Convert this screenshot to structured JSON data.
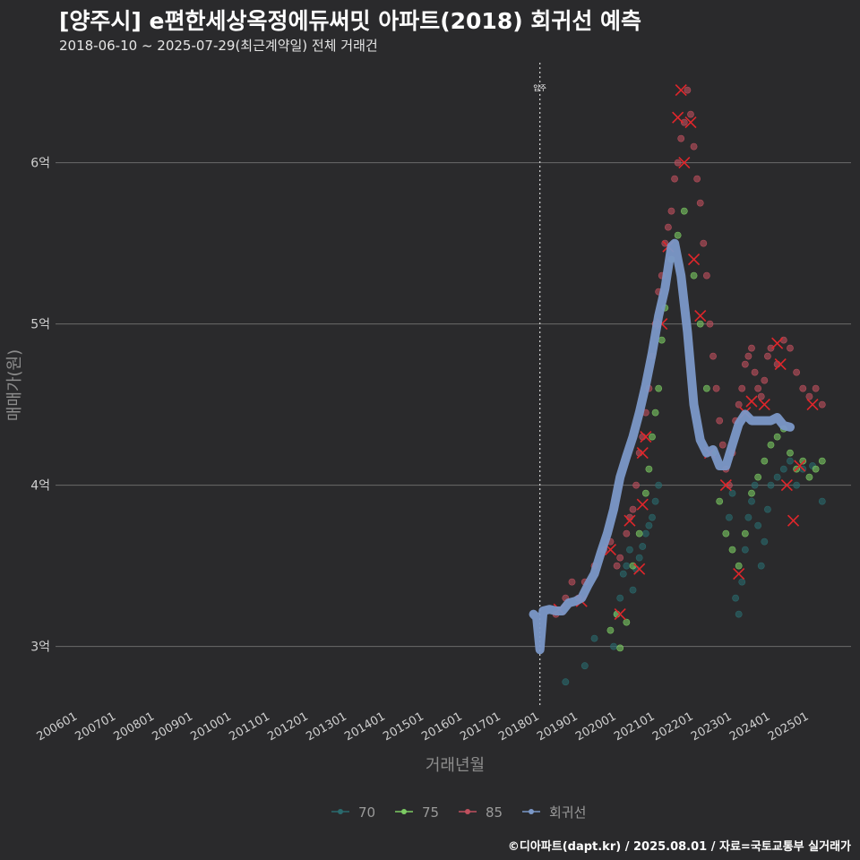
{
  "header": {
    "title": "[양주시] e편한세상옥정에듀써밋 아파트(2018) 회귀선 예측",
    "subtitle": "2018-06-10 ~ 2025-07-29(최근계약일) 전체 거래건"
  },
  "footer": {
    "credit": "©디아파트(dapt.kr) / 2025.08.01 / 자료=국토교통부 실거래가"
  },
  "colors": {
    "background": "#2a2a2c",
    "s70": "#2a6b6e",
    "s75": "#7ccb63",
    "s85": "#c0505e",
    "regression": "#7b98c8",
    "grid": "#6a6a6a",
    "marker": "#e0262b"
  },
  "chart_data": {
    "type": "scatter",
    "xlabel": "거래년월",
    "ylabel": "매매가(원)",
    "ylim": [
      2.62,
      6.62
    ],
    "xlim": [
      "2005-06",
      "2026-02"
    ],
    "y_ticks": [
      3,
      4,
      5,
      6
    ],
    "y_tick_labels": [
      "3억",
      "4억",
      "5억",
      "6억"
    ],
    "x_ticks": [
      "2006-01",
      "2007-01",
      "2008-01",
      "2009-01",
      "2010-01",
      "2011-01",
      "2012-01",
      "2013-01",
      "2014-01",
      "2015-01",
      "2016-01",
      "2017-01",
      "2018-01",
      "2019-01",
      "2020-01",
      "2021-01",
      "2022-01",
      "2023-01",
      "2024-01",
      "2025-01"
    ],
    "x_tick_labels": [
      "200601",
      "200701",
      "200801",
      "200901",
      "201001",
      "201101",
      "201201",
      "201301",
      "201401",
      "201501",
      "201601",
      "201701",
      "201801",
      "201901",
      "202001",
      "202101",
      "202201",
      "202301",
      "202401",
      "202501"
    ],
    "vline": {
      "x": "2018-01",
      "label": "입주"
    },
    "legend": {
      "position": "bottom",
      "entries": [
        "70",
        "75",
        "85",
        "회귀선"
      ]
    },
    "series": [
      {
        "name": "70",
        "points": [
          [
            "2018-09",
            2.78
          ],
          [
            "2019-03",
            2.88
          ],
          [
            "2019-06",
            3.05
          ],
          [
            "2019-12",
            3.0
          ],
          [
            "2020-01",
            3.2
          ],
          [
            "2020-02",
            3.3
          ],
          [
            "2020-03",
            3.45
          ],
          [
            "2020-04",
            3.5
          ],
          [
            "2020-05",
            3.6
          ],
          [
            "2020-06",
            3.35
          ],
          [
            "2020-07",
            3.48
          ],
          [
            "2020-08",
            3.55
          ],
          [
            "2020-09",
            3.62
          ],
          [
            "2020-10",
            3.7
          ],
          [
            "2020-11",
            3.75
          ],
          [
            "2020-12",
            3.8
          ],
          [
            "2021-01",
            3.9
          ],
          [
            "2021-02",
            4.0
          ],
          [
            "2022-12",
            3.8
          ],
          [
            "2023-01",
            3.95
          ],
          [
            "2023-02",
            3.3
          ],
          [
            "2023-03",
            3.2
          ],
          [
            "2023-04",
            3.4
          ],
          [
            "2023-05",
            3.6
          ],
          [
            "2023-06",
            3.8
          ],
          [
            "2023-07",
            3.9
          ],
          [
            "2023-08",
            4.0
          ],
          [
            "2023-09",
            3.75
          ],
          [
            "2023-10",
            3.5
          ],
          [
            "2023-11",
            3.65
          ],
          [
            "2023-12",
            3.85
          ],
          [
            "2024-01",
            4.0
          ],
          [
            "2024-03",
            4.05
          ],
          [
            "2024-05",
            4.1
          ],
          [
            "2024-07",
            4.15
          ],
          [
            "2024-09",
            4.0
          ],
          [
            "2024-11",
            4.1
          ],
          [
            "2025-02",
            4.12
          ],
          [
            "2025-05",
            3.9
          ]
        ]
      },
      {
        "name": "75",
        "points": [
          [
            "2019-11",
            3.1
          ],
          [
            "2020-01",
            3.2
          ],
          [
            "2020-02",
            2.99
          ],
          [
            "2020-04",
            3.15
          ],
          [
            "2020-06",
            3.5
          ],
          [
            "2020-08",
            3.7
          ],
          [
            "2020-10",
            3.95
          ],
          [
            "2020-11",
            4.1
          ],
          [
            "2020-12",
            4.3
          ],
          [
            "2021-01",
            4.45
          ],
          [
            "2021-02",
            4.6
          ],
          [
            "2021-03",
            4.9
          ],
          [
            "2021-04",
            5.1
          ],
          [
            "2021-06",
            5.4
          ],
          [
            "2021-08",
            5.55
          ],
          [
            "2021-10",
            5.7
          ],
          [
            "2022-01",
            5.3
          ],
          [
            "2022-03",
            5.0
          ],
          [
            "2022-05",
            4.6
          ],
          [
            "2022-07",
            4.2
          ],
          [
            "2022-09",
            3.9
          ],
          [
            "2022-11",
            3.7
          ],
          [
            "2023-01",
            3.6
          ],
          [
            "2023-03",
            3.5
          ],
          [
            "2023-05",
            3.7
          ],
          [
            "2023-07",
            3.95
          ],
          [
            "2023-09",
            4.05
          ],
          [
            "2023-11",
            4.15
          ],
          [
            "2024-01",
            4.25
          ],
          [
            "2024-03",
            4.3
          ],
          [
            "2024-05",
            4.35
          ],
          [
            "2024-07",
            4.2
          ],
          [
            "2024-09",
            4.1
          ],
          [
            "2024-11",
            4.15
          ],
          [
            "2025-01",
            4.05
          ],
          [
            "2025-03",
            4.1
          ],
          [
            "2025-05",
            4.15
          ]
        ]
      },
      {
        "name": "85",
        "points": [
          [
            "2018-06",
            3.2
          ],
          [
            "2018-09",
            3.3
          ],
          [
            "2018-11",
            3.4
          ],
          [
            "2019-01",
            3.3
          ],
          [
            "2019-03",
            3.4
          ],
          [
            "2019-06",
            3.5
          ],
          [
            "2019-09",
            3.6
          ],
          [
            "2019-11",
            3.65
          ],
          [
            "2020-01",
            3.5
          ],
          [
            "2020-02",
            3.55
          ],
          [
            "2020-04",
            3.7
          ],
          [
            "2020-05",
            3.8
          ],
          [
            "2020-06",
            3.85
          ],
          [
            "2020-07",
            4.0
          ],
          [
            "2020-08",
            4.2
          ],
          [
            "2020-09",
            4.3
          ],
          [
            "2020-10",
            4.45
          ],
          [
            "2020-11",
            4.6
          ],
          [
            "2020-12",
            4.8
          ],
          [
            "2021-01",
            5.0
          ],
          [
            "2021-02",
            5.2
          ],
          [
            "2021-03",
            5.3
          ],
          [
            "2021-04",
            5.5
          ],
          [
            "2021-05",
            5.6
          ],
          [
            "2021-06",
            5.7
          ],
          [
            "2021-07",
            5.9
          ],
          [
            "2021-08",
            6.0
          ],
          [
            "2021-09",
            6.15
          ],
          [
            "2021-10",
            6.25
          ],
          [
            "2021-11",
            6.45
          ],
          [
            "2021-12",
            6.3
          ],
          [
            "2022-01",
            6.1
          ],
          [
            "2022-02",
            5.9
          ],
          [
            "2022-03",
            5.75
          ],
          [
            "2022-04",
            5.5
          ],
          [
            "2022-05",
            5.3
          ],
          [
            "2022-06",
            5.0
          ],
          [
            "2022-07",
            4.8
          ],
          [
            "2022-08",
            4.6
          ],
          [
            "2022-09",
            4.4
          ],
          [
            "2022-10",
            4.25
          ],
          [
            "2022-11",
            4.1
          ],
          [
            "2022-12",
            4.0
          ],
          [
            "2023-01",
            4.2
          ],
          [
            "2023-02",
            4.4
          ],
          [
            "2023-03",
            4.5
          ],
          [
            "2023-04",
            4.6
          ],
          [
            "2023-05",
            4.75
          ],
          [
            "2023-06",
            4.8
          ],
          [
            "2023-07",
            4.85
          ],
          [
            "2023-08",
            4.7
          ],
          [
            "2023-09",
            4.6
          ],
          [
            "2023-10",
            4.55
          ],
          [
            "2023-11",
            4.65
          ],
          [
            "2023-12",
            4.8
          ],
          [
            "2024-01",
            4.85
          ],
          [
            "2024-03",
            4.75
          ],
          [
            "2024-05",
            4.9
          ],
          [
            "2024-07",
            4.85
          ],
          [
            "2024-09",
            4.7
          ],
          [
            "2024-11",
            4.6
          ],
          [
            "2025-01",
            4.55
          ],
          [
            "2025-03",
            4.6
          ],
          [
            "2025-05",
            4.5
          ]
        ]
      }
    ],
    "marked_trades": [
      [
        "2018-07",
        3.23
      ],
      [
        "2019-02",
        3.28
      ],
      [
        "2019-11",
        3.6
      ],
      [
        "2020-02",
        3.2
      ],
      [
        "2020-05",
        3.78
      ],
      [
        "2020-08",
        3.48
      ],
      [
        "2020-09",
        3.88
      ],
      [
        "2020-09",
        4.2
      ],
      [
        "2020-10",
        4.3
      ],
      [
        "2021-03",
        5.0
      ],
      [
        "2021-05",
        5.48
      ],
      [
        "2021-08",
        6.28
      ],
      [
        "2021-09",
        6.45
      ],
      [
        "2021-10",
        6.0
      ],
      [
        "2021-12",
        6.25
      ],
      [
        "2022-01",
        5.4
      ],
      [
        "2022-03",
        5.05
      ],
      [
        "2022-06",
        4.2
      ],
      [
        "2022-11",
        4.0
      ],
      [
        "2023-03",
        3.45
      ],
      [
        "2023-05",
        4.45
      ],
      [
        "2023-07",
        4.52
      ],
      [
        "2023-11",
        4.5
      ],
      [
        "2024-03",
        4.88
      ],
      [
        "2024-04",
        4.75
      ],
      [
        "2024-06",
        4.0
      ],
      [
        "2024-08",
        3.78
      ],
      [
        "2024-10",
        4.12
      ],
      [
        "2025-02",
        4.5
      ]
    ],
    "regression": {
      "name": "회귀선",
      "points": [
        [
          "2017-11",
          3.2
        ],
        [
          "2017-12",
          3.18
        ],
        [
          "2018-01",
          2.98
        ],
        [
          "2018-02",
          3.22
        ],
        [
          "2018-04",
          3.23
        ],
        [
          "2018-06",
          3.22
        ],
        [
          "2018-08",
          3.22
        ],
        [
          "2018-10",
          3.27
        ],
        [
          "2018-12",
          3.28
        ],
        [
          "2019-02",
          3.3
        ],
        [
          "2019-04",
          3.38
        ],
        [
          "2019-06",
          3.45
        ],
        [
          "2019-08",
          3.58
        ],
        [
          "2019-10",
          3.7
        ],
        [
          "2019-12",
          3.85
        ],
        [
          "2020-02",
          4.05
        ],
        [
          "2020-04",
          4.18
        ],
        [
          "2020-06",
          4.3
        ],
        [
          "2020-08",
          4.45
        ],
        [
          "2020-10",
          4.62
        ],
        [
          "2020-12",
          4.82
        ],
        [
          "2021-02",
          5.05
        ],
        [
          "2021-04",
          5.22
        ],
        [
          "2021-06",
          5.48
        ],
        [
          "2021-07",
          5.5
        ],
        [
          "2021-09",
          5.3
        ],
        [
          "2021-11",
          4.95
        ],
        [
          "2022-01",
          4.5
        ],
        [
          "2022-03",
          4.28
        ],
        [
          "2022-05",
          4.2
        ],
        [
          "2022-07",
          4.22
        ],
        [
          "2022-09",
          4.12
        ],
        [
          "2022-11",
          4.12
        ],
        [
          "2023-01",
          4.25
        ],
        [
          "2023-03",
          4.38
        ],
        [
          "2023-05",
          4.44
        ],
        [
          "2023-07",
          4.4
        ],
        [
          "2023-09",
          4.4
        ],
        [
          "2023-11",
          4.4
        ],
        [
          "2024-01",
          4.4
        ],
        [
          "2024-03",
          4.42
        ],
        [
          "2024-05",
          4.37
        ],
        [
          "2024-07",
          4.36
        ]
      ]
    }
  }
}
